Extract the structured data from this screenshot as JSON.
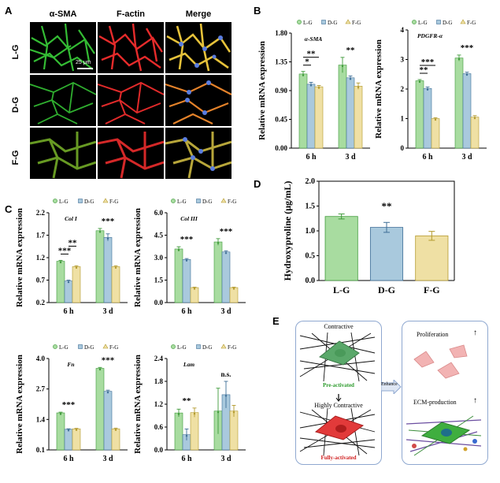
{
  "panel_labels": {
    "a": "A",
    "b": "B",
    "c": "C",
    "d": "D",
    "e": "E"
  },
  "micrographs": {
    "columns": [
      "α-SMA",
      "F-actin",
      "Merge"
    ],
    "rows": [
      "L-G",
      "D-G",
      "F-G"
    ],
    "scale_bar": "25 μm"
  },
  "legend": {
    "items": [
      "L-G",
      "D-G",
      "F-G"
    ]
  },
  "colors": {
    "L-G": "#a8dca0",
    "D-G": "#a9c9dd",
    "F-G": "#efe0a4",
    "L-G_edge": "#3f9a3a",
    "D-G_edge": "#3f6f97",
    "F-G_edge": "#b39a2e"
  },
  "chart_data": [
    {
      "id": "asma",
      "type": "bar",
      "gene": "α-SMA",
      "ylabel": "Relative mRNA expression",
      "categories": [
        "6 h",
        "3 d"
      ],
      "ylim": [
        0,
        1.8
      ],
      "yticks": [
        "0.00",
        "0.45",
        "0.90",
        "1.35",
        "1.80"
      ],
      "series": [
        {
          "name": "L-G",
          "values": [
            1.16,
            1.3
          ],
          "err": [
            0.04,
            0.12
          ]
        },
        {
          "name": "D-G",
          "values": [
            1.0,
            1.1
          ],
          "err": [
            0.03,
            0.03
          ]
        },
        {
          "name": "F-G",
          "values": [
            0.96,
            0.97
          ],
          "err": [
            0.02,
            0.05
          ]
        }
      ],
      "annotations": [
        {
          "text": "*",
          "between": "L-G/D-G",
          "group": "6 h",
          "level": 1.0
        },
        {
          "text": "**",
          "between": "L-G/F-G",
          "group": "6 h",
          "level": 1.4
        },
        {
          "text": "**",
          "group": "3 d"
        }
      ]
    },
    {
      "id": "pdgfra",
      "type": "bar",
      "gene": "PDGFR-α",
      "ylabel": "Relative mRNA expression",
      "categories": [
        "6 h",
        "3 d"
      ],
      "ylim": [
        0,
        4
      ],
      "yticks": [
        "0",
        "1",
        "2",
        "3",
        "4"
      ],
      "series": [
        {
          "name": "L-G",
          "values": [
            2.28,
            3.05
          ],
          "err": [
            0.04,
            0.1
          ]
        },
        {
          "name": "D-G",
          "values": [
            2.02,
            2.52
          ],
          "err": [
            0.05,
            0.05
          ]
        },
        {
          "name": "F-G",
          "values": [
            1.0,
            1.05
          ],
          "err": [
            0.03,
            0.05
          ]
        }
      ],
      "annotations": [
        {
          "text": "**",
          "between": "L-G/D-G",
          "group": "6 h",
          "level": 1.0
        },
        {
          "text": "***",
          "between": "L-G/F-G",
          "group": "6 h",
          "level": 1.4
        },
        {
          "text": "***",
          "group": "3 d"
        }
      ]
    },
    {
      "id": "col1",
      "type": "bar",
      "gene": "Col I",
      "ylabel": "Relative mRNA expression",
      "categories": [
        "6 h",
        "3 d"
      ],
      "ylim": [
        0.2,
        2.2
      ],
      "yticks": [
        "0.2",
        "0.7",
        "1.2",
        "1.7",
        "2.2"
      ],
      "series": [
        {
          "name": "L-G",
          "values": [
            1.12,
            1.8
          ],
          "err": [
            0.02,
            0.05
          ]
        },
        {
          "name": "D-G",
          "values": [
            0.68,
            1.65
          ],
          "err": [
            0.02,
            0.08
          ]
        },
        {
          "name": "F-G",
          "values": [
            1.0,
            1.0
          ],
          "err": [
            0.02,
            0.02
          ]
        }
      ],
      "annotations": [
        {
          "text": "***",
          "between": "L-G/D-G",
          "group": "6 h",
          "level": 1.0
        },
        {
          "text": "**",
          "between": "D-G/F-G",
          "group": "6 h",
          "level": 1.4
        },
        {
          "text": "***",
          "group": "3 d"
        }
      ]
    },
    {
      "id": "col3",
      "type": "bar",
      "gene": "Col III",
      "ylabel": "Relative mRNA expression",
      "categories": [
        "6 h",
        "3 d"
      ],
      "ylim": [
        0,
        6
      ],
      "yticks": [
        "0.0",
        "1.5",
        "3.0",
        "4.5",
        "6.0"
      ],
      "series": [
        {
          "name": "L-G",
          "values": [
            3.58,
            4.05
          ],
          "err": [
            0.15,
            0.22
          ]
        },
        {
          "name": "D-G",
          "values": [
            2.88,
            3.38
          ],
          "err": [
            0.06,
            0.08
          ]
        },
        {
          "name": "F-G",
          "values": [
            1.0,
            1.0
          ],
          "err": [
            0.03,
            0.03
          ]
        }
      ],
      "annotations": [
        {
          "text": "***",
          "group": "6 h"
        },
        {
          "text": "***",
          "group": "3 d"
        }
      ]
    },
    {
      "id": "fn",
      "type": "bar",
      "gene": "Fn",
      "ylabel": "Relative mRNA expression",
      "categories": [
        "6 h",
        "3 d"
      ],
      "ylim": [
        0.1,
        4.0
      ],
      "yticks": [
        "0.1",
        "1.4",
        "2.7",
        "4.0"
      ],
      "series": [
        {
          "name": "L-G",
          "values": [
            1.68,
            3.58
          ],
          "err": [
            0.03,
            0.04
          ]
        },
        {
          "name": "D-G",
          "values": [
            0.98,
            2.6
          ],
          "err": [
            0.02,
            0.05
          ]
        },
        {
          "name": "F-G",
          "values": [
            1.0,
            1.0
          ],
          "err": [
            0.02,
            0.03
          ]
        }
      ],
      "annotations": [
        {
          "text": "***",
          "group": "6 h"
        },
        {
          "text": "***",
          "group": "3 d"
        }
      ]
    },
    {
      "id": "lam",
      "type": "bar",
      "gene": "Lam",
      "ylabel": "Relative mRNA expression",
      "categories": [
        "6 h",
        "3 d"
      ],
      "ylim": [
        0,
        2.4
      ],
      "yticks": [
        "0.0",
        "0.6",
        "1.2",
        "1.8",
        "2.4"
      ],
      "series": [
        {
          "name": "L-G",
          "values": [
            0.97,
            1.02
          ],
          "err": [
            0.1,
            0.6
          ]
        },
        {
          "name": "D-G",
          "values": [
            0.4,
            1.45
          ],
          "err": [
            0.15,
            0.35
          ]
        },
        {
          "name": "F-G",
          "values": [
            0.98,
            1.02
          ],
          "err": [
            0.12,
            0.15
          ]
        }
      ],
      "annotations": [
        {
          "text": "**",
          "group": "6 h"
        },
        {
          "text": "n.s.",
          "group": "3 d"
        }
      ]
    },
    {
      "id": "hyp",
      "type": "bar",
      "ylabel": "Hydroxyproline (μg/mL)",
      "categories": [
        "L-G",
        "D-G",
        "F-G"
      ],
      "ylim": [
        0,
        2
      ],
      "yticks": [
        "0.0",
        "0.5",
        "1.0",
        "1.5",
        "2.0"
      ],
      "values": [
        1.29,
        1.07,
        0.9
      ],
      "err": [
        0.05,
        0.1,
        0.09
      ],
      "annotations": [
        {
          "text": "**"
        }
      ]
    }
  ],
  "schematic": {
    "left": {
      "top": "Contractive",
      "pre": "Pre-activated",
      "mid": "Highly Contractive",
      "full": "Fully-activated"
    },
    "arrow": "Enhance",
    "right": {
      "prolif": "Proliferation",
      "ecm": "ECM-production"
    }
  }
}
